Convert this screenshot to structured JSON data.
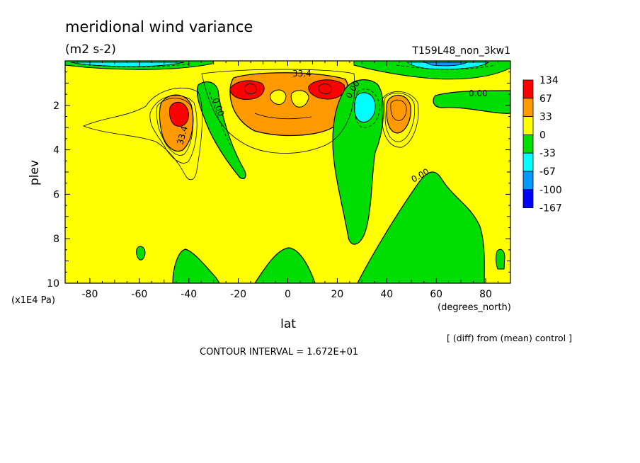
{
  "chart_data": {
    "type": "heatmap",
    "title": "meridional wind variance",
    "subtitle": "(m2 s-2)",
    "run_label": "T159L48_non_3kw1",
    "xlabel": "lat",
    "x_unit": "(degrees_north)",
    "ylabel": "plev",
    "y_unit": "(x1E4 Pa)",
    "xlim": [
      -90,
      90
    ],
    "ylim": [
      10,
      0
    ],
    "x_ticks": [
      "-80",
      "-60",
      "-40",
      "-20",
      "0",
      "20",
      "40",
      "60",
      "80"
    ],
    "y_ticks": [
      "2",
      "4",
      "6",
      "8",
      "10"
    ],
    "colorbar_levels": [
      "134",
      "67",
      "33",
      "0",
      "-33",
      "-67",
      "-100",
      "-167"
    ],
    "colorbar_colors": [
      "#ff0000",
      "#ff9900",
      "#ffff00",
      "#00dd00",
      "#00ffff",
      "#0099ff",
      "#0000ff"
    ],
    "contour_labels": [
      "33.4",
      "0.00",
      "0.00",
      "33.4",
      "0.00",
      "0.00"
    ],
    "note": "[ (diff) from (mean) control ]",
    "contour_interval": "CONTOUR INTERVAL = 1.672E+01",
    "fill_colors": {
      "background": "#ffff00",
      "positive_1": "#ff9900",
      "positive_2": "#ff0000",
      "negative_1": "#00dd00",
      "negative_2": "#00ffff",
      "negative_3": "#0099ff"
    }
  }
}
